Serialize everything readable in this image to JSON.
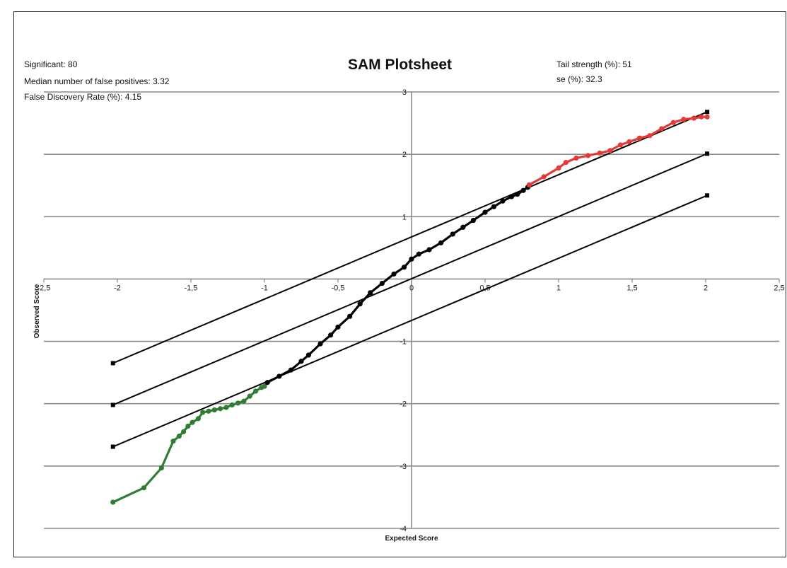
{
  "chart_data": {
    "type": "scatter",
    "title": "SAM Plotsheet",
    "xlabel": "Expected Score",
    "ylabel": "Observed Score",
    "xlim": [
      -2.5,
      2.5
    ],
    "ylim": [
      -4,
      3
    ],
    "x_tick_labels": [
      "-2,5",
      "-2",
      "-1,5",
      "-1",
      "-0,5",
      "0",
      "0,5",
      "1",
      "1,5",
      "2",
      "2,5"
    ],
    "y_tick_labels": [
      "3",
      "2",
      "1",
      "-1",
      "-2",
      "-3",
      "-4"
    ],
    "grid": "horizontal",
    "stats": {
      "significant": "Significant: 80",
      "median_false_positives": "Median number of false positives: 3.32",
      "fdr": "False Discovery Rate (%): 4.15",
      "tail_strength": "Tail strength (%): 51",
      "se": "se (%): 32.3"
    },
    "series": [
      {
        "color": "#2e7d32",
        "x": [
          -2.03,
          -1.82,
          -1.7,
          -1.62,
          -1.58,
          -1.55,
          -1.52,
          -1.49,
          -1.45,
          -1.42,
          -1.38,
          -1.34,
          -1.3,
          -1.26,
          -1.22,
          -1.18,
          -1.14,
          -1.1,
          -1.06,
          -1.02,
          -1.0
        ],
        "y": [
          -3.58,
          -3.35,
          -3.03,
          -2.6,
          -2.52,
          -2.45,
          -2.36,
          -2.3,
          -2.24,
          -2.14,
          -2.12,
          -2.1,
          -2.08,
          -2.06,
          -2.02,
          -1.99,
          -1.96,
          -1.88,
          -1.8,
          -1.74,
          -1.72
        ]
      },
      {
        "color": "#000000",
        "x": [
          -0.98,
          -0.9,
          -0.82,
          -0.75,
          -0.7,
          -0.62,
          -0.55,
          -0.5,
          -0.42,
          -0.35,
          -0.28,
          -0.2,
          -0.12,
          -0.05,
          0.0,
          0.05,
          0.12,
          0.2,
          0.28,
          0.35,
          0.42,
          0.5,
          0.56,
          0.62,
          0.68,
          0.72,
          0.76,
          0.79
        ],
        "y": [
          -1.66,
          -1.56,
          -1.46,
          -1.32,
          -1.22,
          -1.04,
          -0.9,
          -0.77,
          -0.6,
          -0.4,
          -0.22,
          -0.07,
          0.08,
          0.19,
          0.32,
          0.4,
          0.47,
          0.58,
          0.72,
          0.83,
          0.94,
          1.07,
          1.16,
          1.25,
          1.32,
          1.36,
          1.42,
          1.47
        ]
      },
      {
        "color": "#e53935",
        "x": [
          0.8,
          0.9,
          1.0,
          1.05,
          1.12,
          1.2,
          1.28,
          1.35,
          1.42,
          1.48,
          1.55,
          1.62,
          1.7,
          1.78,
          1.85,
          1.92,
          1.97,
          2.01
        ],
        "y": [
          1.51,
          1.64,
          1.78,
          1.87,
          1.94,
          1.98,
          2.02,
          2.06,
          2.15,
          2.2,
          2.26,
          2.3,
          2.41,
          2.51,
          2.56,
          2.58,
          2.6,
          2.6
        ]
      }
    ],
    "reference_lines": [
      {
        "x": [
          -2.03,
          2.01
        ],
        "y": [
          -1.35,
          2.68
        ]
      },
      {
        "x": [
          -2.03,
          2.01
        ],
        "y": [
          -2.02,
          2.01
        ]
      },
      {
        "x": [
          -2.03,
          2.01
        ],
        "y": [
          -2.69,
          1.34
        ]
      }
    ]
  }
}
